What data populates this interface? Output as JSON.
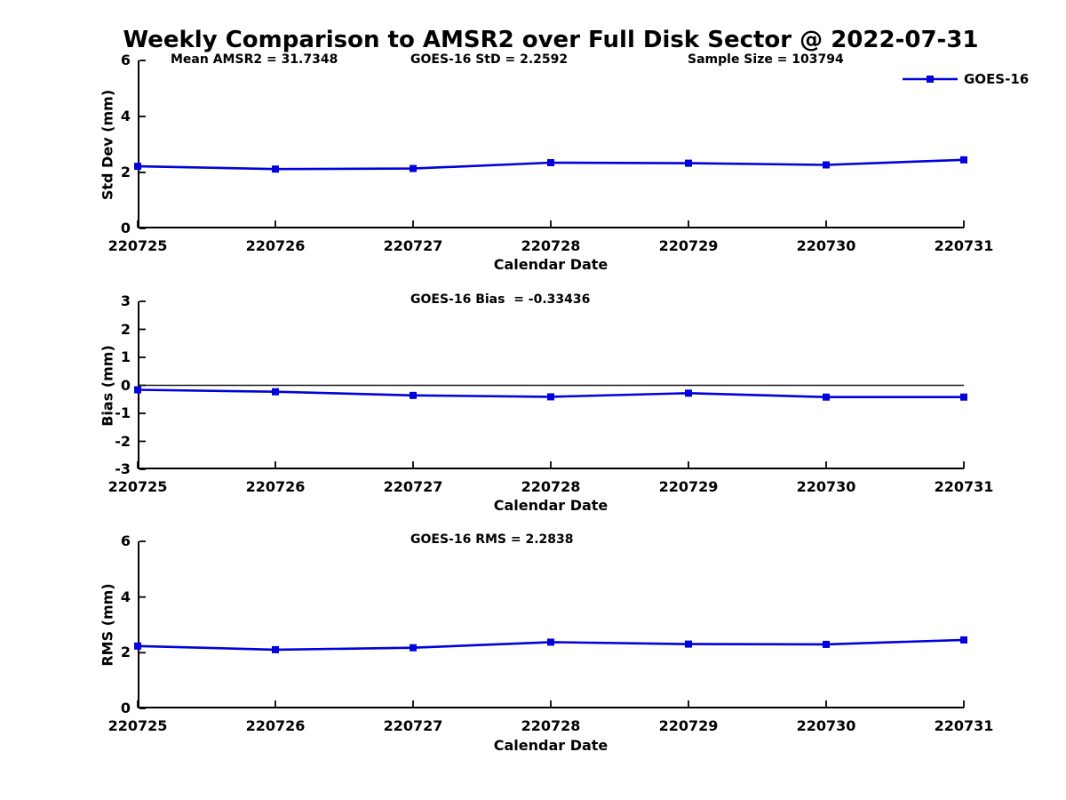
{
  "figure": {
    "title": "Weekly Comparison to AMSR2 over Full Disk Sector @ 2022-07-31",
    "legend": {
      "label": "GOES-16",
      "position": "top-right",
      "marker": "square-on-line"
    },
    "accent_color": "#0000dd",
    "background_color": "#ffffff"
  },
  "chart_data": [
    {
      "id": "std-dev",
      "type": "line",
      "annotations": [
        "Mean AMSR2 = 31.7348",
        "GOES-16 StD = 2.2592",
        "Sample Size = 103794"
      ],
      "categories": [
        "220725",
        "220726",
        "220727",
        "220728",
        "220729",
        "220730",
        "220731"
      ],
      "series": [
        {
          "name": "GOES-16",
          "color": "#0000dd",
          "marker": "square",
          "values": [
            2.22,
            2.12,
            2.14,
            2.35,
            2.33,
            2.27,
            2.45
          ]
        }
      ],
      "xlabel": "Calendar Date",
      "ylabel": "Std Dev (mm)",
      "ylim": [
        0,
        6
      ],
      "yticks": [
        0,
        2,
        4,
        6
      ],
      "zero_line": false,
      "grid": false,
      "legend_position": "top-right"
    },
    {
      "id": "bias",
      "type": "line",
      "annotations": [
        "GOES-16 Bias  = -0.33436"
      ],
      "categories": [
        "220725",
        "220726",
        "220727",
        "220728",
        "220729",
        "220730",
        "220731"
      ],
      "series": [
        {
          "name": "GOES-16",
          "color": "#0000dd",
          "marker": "square",
          "values": [
            -0.16,
            -0.23,
            -0.36,
            -0.41,
            -0.28,
            -0.42,
            -0.42
          ]
        }
      ],
      "xlabel": "Calendar Date",
      "ylabel": "Bias (mm)",
      "ylim": [
        -3,
        3
      ],
      "yticks": [
        -3,
        -2,
        -1,
        0,
        1,
        2,
        3
      ],
      "zero_line": true,
      "grid": false,
      "legend_position": "none"
    },
    {
      "id": "rms",
      "type": "line",
      "annotations": [
        "GOES-16 RMS = 2.2838"
      ],
      "categories": [
        "220725",
        "220726",
        "220727",
        "220728",
        "220729",
        "220730",
        "220731"
      ],
      "series": [
        {
          "name": "GOES-16",
          "color": "#0000dd",
          "marker": "square",
          "values": [
            2.24,
            2.11,
            2.18,
            2.38,
            2.31,
            2.3,
            2.46
          ]
        }
      ],
      "xlabel": "Calendar Date",
      "ylabel": "RMS (mm)",
      "ylim": [
        0,
        6
      ],
      "yticks": [
        0,
        2,
        4,
        6
      ],
      "zero_line": false,
      "grid": false,
      "legend_position": "none"
    }
  ]
}
